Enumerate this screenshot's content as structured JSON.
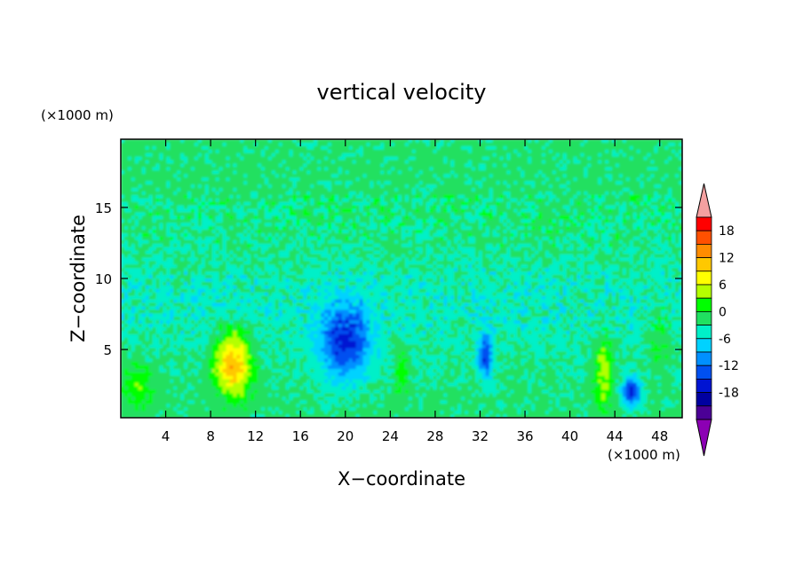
{
  "chart_data": {
    "type": "heatmap",
    "title": "vertical velocity",
    "xlabel": "X−coordinate",
    "ylabel": "Z−coordinate",
    "x_unit": "(×1000 m)",
    "y_unit": "(×1000 m)",
    "xlim": [
      0,
      50
    ],
    "ylim": [
      0.2,
      19.8
    ],
    "x_ticks": [
      4,
      8,
      12,
      16,
      20,
      24,
      28,
      32,
      36,
      40,
      44,
      48
    ],
    "y_ticks": [
      5,
      10,
      15
    ],
    "colorbar": {
      "levels": [
        -21,
        -18,
        -15,
        -12,
        -9,
        -6,
        -3,
        0,
        3,
        6,
        9,
        12,
        15,
        18,
        21
      ],
      "tick_labels": [
        18,
        12,
        6,
        0,
        -6,
        -12,
        -18
      ],
      "extend": "both",
      "colors": [
        "#8c00b4",
        "#4b0096",
        "#0000a0",
        "#0014d2",
        "#0050f0",
        "#0090ff",
        "#00d2ff",
        "#00f0c8",
        "#20e060",
        "#00ff00",
        "#b4ff00",
        "#ffff00",
        "#ffc800",
        "#ff8c00",
        "#ff5000",
        "#ff0000",
        "#f4a0a0"
      ]
    },
    "features": [
      {
        "x": 10,
        "z": 4.0,
        "peak": 14
      },
      {
        "x": 20,
        "z": 5.5,
        "peak": -13
      },
      {
        "x": 32.5,
        "z": 4.5,
        "peak": -12
      },
      {
        "x": 45.5,
        "z": 2.0,
        "peak": -14
      },
      {
        "x": 43,
        "z": 3.5,
        "peak": 7
      },
      {
        "x": 25,
        "z": 3.5,
        "peak": 5
      },
      {
        "x": 1.5,
        "z": 2.5,
        "peak": 4
      },
      {
        "x": 48,
        "z": 6.0,
        "peak": 4
      }
    ]
  }
}
